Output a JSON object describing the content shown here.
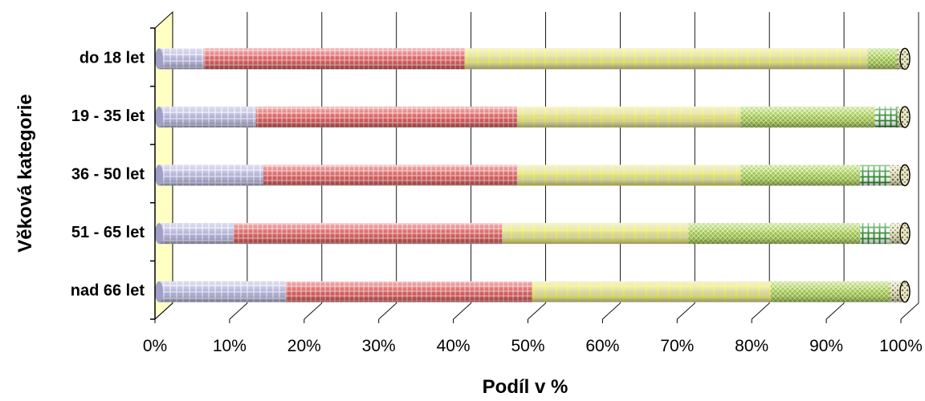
{
  "chart_data": {
    "type": "bar",
    "orientation": "horizontal",
    "stacked": "percent",
    "categories": [
      "do 18 let",
      "19 - 35 let",
      "36 - 50 let",
      "51 - 65 let",
      "nad 66 let"
    ],
    "series": [
      {
        "values": [
          6,
          13,
          14,
          10,
          17
        ]
      },
      {
        "values": [
          35,
          35,
          34,
          36,
          33
        ]
      },
      {
        "values": [
          54,
          30,
          30,
          25,
          32
        ]
      },
      {
        "values": [
          4,
          18,
          16,
          23,
          16
        ]
      },
      {
        "values": [
          0,
          3,
          4,
          4,
          0
        ]
      },
      {
        "values": [
          1,
          1,
          2,
          2,
          2
        ]
      }
    ],
    "colors": [
      "#b8b8e0",
      "#e06060",
      "#f2f26a",
      "#9cc83c",
      "#2f8f2f",
      "#bdb887"
    ],
    "xlim": [
      0,
      100
    ],
    "xticks": [
      "0%",
      "10%",
      "20%",
      "30%",
      "40%",
      "50%",
      "60%",
      "70%",
      "80%",
      "90%",
      "100%"
    ],
    "xlabel": "Podíl v %",
    "ylabel": "Věková kategorie",
    "grid": true,
    "style": "3d-cylinders"
  }
}
